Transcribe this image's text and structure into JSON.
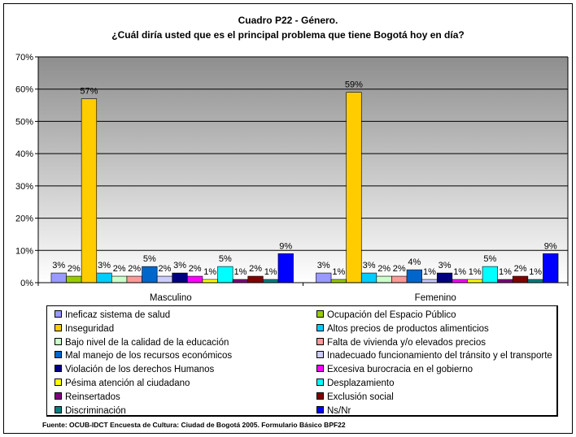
{
  "title_line1": "Cuadro P22 - Género.",
  "title_line2": "¿Cuál diría usted que es el principal problema que tiene Bogotá hoy en día?",
  "source": "Fuente: OCUB-IDCT Encuesta de Cultura: Ciudad de Bogotá 2005. Formulario Básico BPF22",
  "chart_data": {
    "type": "bar",
    "title": "Cuadro P22 - Género. ¿Cuál diría usted que es el principal problema que tiene Bogotá hoy en día?",
    "categories": [
      "Masculino",
      "Femenino"
    ],
    "ylim": [
      0,
      70
    ],
    "yticks": [
      0,
      10,
      20,
      30,
      40,
      50,
      60,
      70
    ],
    "ytick_labels": [
      "0%",
      "10%",
      "20%",
      "30%",
      "40%",
      "50%",
      "60%",
      "70%"
    ],
    "grid": true,
    "legend_position": "bottom",
    "series": [
      {
        "name": "Ineficaz sistema de salud",
        "color": "#9999ff",
        "values": [
          3,
          3
        ],
        "labels": [
          "3%",
          "3%"
        ]
      },
      {
        "name": "Ocupación del Espacio Público",
        "color": "#99cc00",
        "values": [
          2,
          1
        ],
        "labels": [
          "2%",
          "1%"
        ]
      },
      {
        "name": "Inseguridad",
        "color": "#ffcc00",
        "values": [
          57,
          59
        ],
        "labels": [
          "57%",
          "59%"
        ]
      },
      {
        "name": "Altos precios de productos alimenticios",
        "color": "#00ccff",
        "values": [
          3,
          3
        ],
        "labels": [
          "3%",
          "3%"
        ]
      },
      {
        "name": "Bajo nivel de la calidad de la educación",
        "color": "#ccffcc",
        "values": [
          2,
          2
        ],
        "labels": [
          "2%",
          "2%"
        ]
      },
      {
        "name": "Falta de vivienda y/o elevados precios",
        "color": "#ff9999",
        "values": [
          2,
          2
        ],
        "labels": [
          "2%",
          "2%"
        ]
      },
      {
        "name": "Mal manejo de los recursos económicos",
        "color": "#0066cc",
        "values": [
          5,
          4
        ],
        "labels": [
          "5%",
          "4%"
        ]
      },
      {
        "name": "Inadecuado funcionamiento del tránsito y el transporte",
        "color": "#ccccff",
        "values": [
          2,
          1
        ],
        "labels": [
          "2%",
          "1%"
        ]
      },
      {
        "name": "Violación de los derechos Humanos",
        "color": "#000080",
        "values": [
          3,
          3
        ],
        "labels": [
          "3%",
          "3%"
        ]
      },
      {
        "name": "Excesiva burocracia en el gobierno",
        "color": "#ff00ff",
        "values": [
          2,
          1
        ],
        "labels": [
          "2%",
          "1%"
        ]
      },
      {
        "name": "Pésima atención al ciudadano",
        "color": "#ffff00",
        "values": [
          1,
          1
        ],
        "labels": [
          "1%",
          "1%"
        ]
      },
      {
        "name": "Desplazamiento",
        "color": "#00ffff",
        "values": [
          5,
          5
        ],
        "labels": [
          "5%",
          "5%"
        ]
      },
      {
        "name": "Reinsertados",
        "color": "#800080",
        "values": [
          1,
          1
        ],
        "labels": [
          "1%",
          "1%"
        ]
      },
      {
        "name": "Exclusión social",
        "color": "#800000",
        "values": [
          2,
          2
        ],
        "labels": [
          "2%",
          "2%"
        ]
      },
      {
        "name": "Discriminación",
        "color": "#008080",
        "values": [
          1,
          1
        ],
        "labels": [
          "1%",
          "1%"
        ]
      },
      {
        "name": "Ns/Nr",
        "color": "#0000ff",
        "values": [
          9,
          9
        ],
        "labels": [
          "9%",
          "9%"
        ]
      }
    ]
  }
}
